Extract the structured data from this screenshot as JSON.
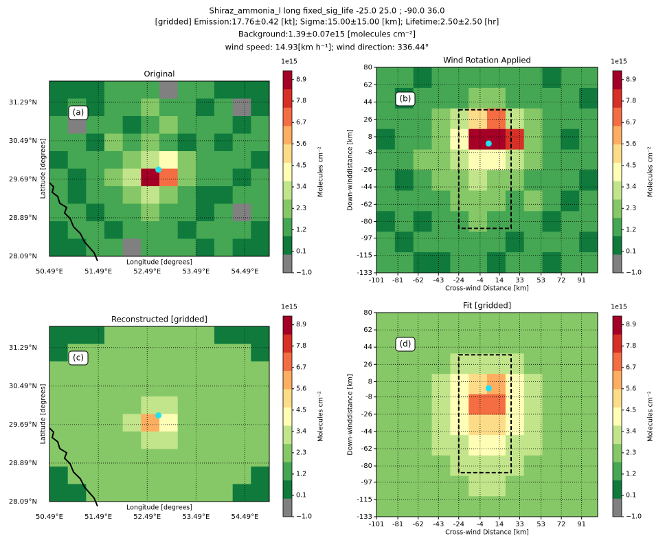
{
  "figure_title": [
    "Shiraz_ammonia_l long fixed_sig_life -25.0 25.0 ; -90.0 36.0",
    "[gridded] Emission:17.76±0.42 [kt]; Sigma:15.00±15.00 [km]; Lifetime:2.50±2.50 [hr]",
    "Background:1.39±0.07e15 [molecules cm⁻²]",
    "wind speed: 14.93[km h⁻¹]; wind direction: 336.44°"
  ],
  "chart_data": [
    {
      "type": "heatmap",
      "title": "Original",
      "panel_label": "(a)",
      "xlabel": "Longitude [degrees]",
      "ylabel": "Latitude [degrees]",
      "map": true,
      "coastline": true,
      "grid": true,
      "xlim": [
        50.49,
        54.99
      ],
      "ylim": [
        28.09,
        31.73
      ],
      "xticks": [
        {
          "value": 50.49,
          "label": "50.49°E"
        },
        {
          "value": 51.49,
          "label": "51.49°E"
        },
        {
          "value": 52.49,
          "label": "52.49°E"
        },
        {
          "value": 53.49,
          "label": "53.49°E"
        },
        {
          "value": 54.49,
          "label": "54.49°E"
        }
      ],
      "yticks": [
        {
          "value": 28.09,
          "label": "28.09°N"
        },
        {
          "value": 28.89,
          "label": "28.89°N"
        },
        {
          "value": 29.69,
          "label": "29.69°N"
        },
        {
          "value": 30.49,
          "label": "30.49°N"
        },
        {
          "value": 31.29,
          "label": "31.29°N"
        }
      ],
      "z": [
        [
          0.5,
          0.5,
          0.5,
          1.5,
          1.5,
          1.5,
          -0.5,
          1.5,
          1.5,
          0.5,
          0.5,
          0.5
        ],
        [
          0.5,
          1.5,
          0.6,
          1.5,
          1.5,
          2.5,
          1.5,
          1.5,
          0.6,
          1.5,
          -0.5,
          0.5
        ],
        [
          1.5,
          -0.5,
          1.5,
          1.5,
          0.6,
          1.5,
          2.5,
          1.5,
          1.5,
          1.5,
          0.6,
          1.5
        ],
        [
          1.5,
          1.5,
          0.6,
          2.5,
          1.5,
          2.5,
          1.5,
          0.6,
          1.5,
          0.6,
          1.5,
          1.5
        ],
        [
          0.6,
          1.5,
          1.5,
          1.5,
          2.5,
          3.5,
          4.5,
          2.5,
          1.5,
          1.5,
          1.5,
          0.6
        ],
        [
          1.5,
          0.6,
          1.5,
          2.5,
          3.5,
          9.5,
          7.0,
          2.5,
          1.5,
          1.5,
          0.6,
          1.5
        ],
        [
          1.5,
          0.6,
          1.5,
          1.5,
          2.5,
          3.5,
          2.5,
          1.5,
          0.6,
          0.6,
          1.5,
          1.5
        ],
        [
          1.5,
          1.5,
          0.6,
          1.5,
          1.5,
          2.5,
          1.5,
          1.5,
          0.6,
          1.5,
          -0.5,
          1.5
        ],
        [
          0.5,
          1.5,
          1.5,
          0.6,
          1.5,
          1.5,
          1.5,
          0.6,
          1.5,
          1.5,
          1.5,
          0.5
        ],
        [
          0.5,
          0.5,
          1.5,
          1.5,
          -0.5,
          1.5,
          1.5,
          1.5,
          0.6,
          1.5,
          0.5,
          0.5
        ]
      ],
      "marker": {
        "x": 52.72,
        "y": 29.89,
        "color": "#22e0f0"
      },
      "colorbar": {
        "offset_label": "1e15",
        "label": "Molecules cm⁻²",
        "clim": [
          -1.0,
          9.35
        ],
        "ticks": [
          8.9,
          7.8,
          6.7,
          5.6,
          4.5,
          3.4,
          2.3,
          1.2,
          0.1,
          {
            "value": -1.0,
            "label": "−1.0"
          }
        ]
      }
    },
    {
      "type": "heatmap",
      "title": "Wind Rotation Applied",
      "panel_label": "(b)",
      "xlabel": "Cross-wind Distance [km]",
      "ylabel": "Down-winddistance [km]",
      "map": false,
      "coastline": false,
      "grid": true,
      "xlim": [
        -101,
        106
      ],
      "ylim": [
        -133,
        80
      ],
      "xticks": [
        -101,
        -81,
        -62,
        -43,
        -24,
        -4,
        14,
        33,
        53,
        72,
        91
      ],
      "yticks": [
        80,
        62,
        44,
        26,
        8,
        -8,
        -26,
        -44,
        -62,
        -80,
        -97,
        -115,
        -133
      ],
      "z": [
        [
          1.5,
          1.5,
          0.6,
          1.5,
          1.5,
          1.5,
          1.5,
          1.5,
          1.5,
          0.6,
          1.5,
          1.5
        ],
        [
          1.5,
          0.6,
          1.5,
          1.5,
          1.5,
          2.5,
          2.5,
          1.5,
          1.5,
          1.5,
          1.5,
          0.6
        ],
        [
          1.5,
          1.5,
          1.5,
          2.5,
          3.5,
          5.5,
          7.0,
          3.5,
          2.5,
          1.5,
          1.5,
          1.5
        ],
        [
          0.6,
          1.5,
          1.5,
          2.5,
          4.5,
          9.5,
          9.5,
          8.0,
          2.5,
          1.5,
          0.6,
          1.5
        ],
        [
          1.5,
          1.5,
          2.5,
          2.5,
          3.5,
          4.5,
          4.5,
          3.5,
          2.5,
          1.5,
          1.5,
          1.5
        ],
        [
          1.5,
          0.6,
          1.5,
          2.5,
          2.5,
          3.5,
          2.5,
          2.5,
          1.5,
          1.5,
          1.5,
          0.6
        ],
        [
          1.5,
          1.5,
          1.5,
          1.5,
          2.5,
          2.5,
          2.5,
          1.5,
          2.5,
          1.5,
          0.6,
          1.5
        ],
        [
          0.6,
          1.5,
          0.6,
          1.5,
          1.5,
          2.5,
          1.5,
          1.5,
          1.5,
          0.6,
          1.5,
          1.5
        ],
        [
          1.5,
          0.6,
          1.5,
          1.5,
          1.5,
          1.5,
          1.5,
          0.6,
          1.5,
          1.5,
          1.5,
          0.6
        ],
        [
          1.5,
          1.5,
          0.6,
          0.6,
          1.5,
          1.5,
          0.6,
          1.5,
          1.5,
          0.6,
          1.5,
          1.5
        ]
      ],
      "marker": {
        "x": 4,
        "y": 1,
        "color": "#22e0f0"
      },
      "box": {
        "x": [
          -24,
          25
        ],
        "y": [
          -87,
          36
        ]
      },
      "colorbar": {
        "offset_label": "1e15",
        "label": "Molecules cm⁻²",
        "clim": [
          -1.0,
          9.35
        ],
        "ticks": [
          8.9,
          7.8,
          6.7,
          5.6,
          4.5,
          3.4,
          2.3,
          1.2,
          0.1,
          {
            "value": -1.0,
            "label": "−1.0"
          }
        ]
      }
    },
    {
      "type": "heatmap",
      "title": "Reconstructed [gridded]",
      "panel_label": "(c)",
      "xlabel": "Longitude [degrees]",
      "ylabel": "Latitude [degrees]",
      "map": true,
      "coastline": true,
      "grid": true,
      "xlim": [
        50.49,
        54.99
      ],
      "ylim": [
        28.09,
        31.73
      ],
      "xticks": [
        {
          "value": 50.49,
          "label": "50.49°E"
        },
        {
          "value": 51.49,
          "label": "51.49°E"
        },
        {
          "value": 52.49,
          "label": "52.49°E"
        },
        {
          "value": 53.49,
          "label": "53.49°E"
        },
        {
          "value": 54.49,
          "label": "54.49°E"
        }
      ],
      "yticks": [
        {
          "value": 28.09,
          "label": "28.09°N"
        },
        {
          "value": 28.89,
          "label": "28.89°N"
        },
        {
          "value": 29.69,
          "label": "29.69°N"
        },
        {
          "value": 30.49,
          "label": "30.49°N"
        },
        {
          "value": 31.29,
          "label": "31.29°N"
        }
      ],
      "z": [
        [
          0.5,
          0.5,
          0.5,
          2.5,
          2.5,
          2.5,
          2.5,
          2.5,
          2.5,
          0.5,
          0.5,
          0.5
        ],
        [
          0.5,
          2.5,
          2.5,
          2.5,
          2.5,
          2.5,
          2.5,
          2.5,
          2.5,
          2.5,
          2.5,
          0.5
        ],
        [
          2.5,
          2.5,
          2.5,
          2.5,
          2.5,
          2.5,
          2.5,
          2.5,
          2.5,
          2.5,
          2.5,
          2.5
        ],
        [
          2.5,
          2.5,
          2.5,
          2.5,
          2.5,
          2.5,
          2.5,
          2.5,
          2.5,
          2.5,
          2.5,
          2.5
        ],
        [
          2.5,
          2.5,
          2.5,
          2.5,
          2.5,
          3.5,
          3.5,
          2.5,
          2.5,
          2.5,
          2.5,
          2.5
        ],
        [
          2.5,
          2.5,
          2.5,
          2.5,
          3.5,
          6.5,
          4.5,
          2.5,
          2.5,
          2.5,
          2.5,
          2.5
        ],
        [
          2.5,
          2.5,
          2.5,
          2.5,
          2.5,
          3.5,
          3.5,
          2.5,
          2.5,
          2.5,
          2.5,
          2.5
        ],
        [
          2.5,
          2.5,
          2.5,
          2.5,
          2.5,
          2.5,
          2.5,
          2.5,
          2.5,
          2.5,
          2.5,
          2.5
        ],
        [
          0.5,
          2.5,
          2.5,
          2.5,
          2.5,
          2.5,
          2.5,
          2.5,
          2.5,
          2.5,
          2.5,
          0.5
        ],
        [
          0.5,
          0.5,
          2.5,
          2.5,
          2.5,
          2.5,
          2.5,
          2.5,
          2.5,
          2.5,
          0.5,
          0.5
        ]
      ],
      "marker": {
        "x": 52.72,
        "y": 29.88,
        "color": "#22e0f0"
      },
      "colorbar": {
        "offset_label": "1e15",
        "label": "Molecules cm⁻²",
        "clim": [
          -1.0,
          9.35
        ],
        "ticks": [
          8.9,
          7.8,
          6.7,
          5.6,
          4.5,
          3.4,
          2.3,
          1.2,
          0.1,
          {
            "value": -1.0,
            "label": "−1.0"
          }
        ]
      }
    },
    {
      "type": "heatmap",
      "title": "Fit [gridded]",
      "panel_label": "(d)",
      "xlabel": "Cross-wind Distance [km]",
      "ylabel": "Down-winddistance [km]",
      "map": false,
      "coastline": false,
      "grid": true,
      "xlim": [
        -101,
        106
      ],
      "ylim": [
        -133,
        80
      ],
      "xticks": [
        -101,
        -81,
        -62,
        -43,
        -24,
        -4,
        14,
        33,
        53,
        72,
        91
      ],
      "yticks": [
        80,
        62,
        44,
        26,
        8,
        -8,
        -26,
        -44,
        -62,
        -80,
        -97,
        -115,
        -133
      ],
      "z": [
        [
          2.5,
          2.5,
          2.5,
          2.5,
          2.5,
          2.5,
          2.5,
          2.5,
          2.5,
          2.5,
          2.5,
          2.5
        ],
        [
          2.5,
          2.5,
          2.5,
          2.5,
          2.5,
          2.5,
          2.5,
          2.5,
          2.5,
          2.5,
          2.5,
          2.5
        ],
        [
          2.5,
          2.5,
          2.5,
          2.5,
          3.5,
          3.5,
          3.5,
          3.5,
          2.5,
          2.5,
          2.5,
          2.5
        ],
        [
          2.5,
          2.5,
          2.5,
          3.5,
          4.5,
          5.5,
          6.5,
          4.5,
          3.5,
          2.5,
          2.5,
          2.5
        ],
        [
          2.5,
          2.5,
          2.5,
          3.5,
          4.5,
          7.0,
          7.0,
          4.5,
          3.5,
          2.5,
          2.5,
          2.5
        ],
        [
          2.5,
          2.5,
          2.5,
          3.5,
          4.5,
          5.5,
          5.5,
          4.5,
          3.5,
          2.5,
          2.5,
          2.5
        ],
        [
          2.5,
          2.5,
          2.5,
          3.5,
          3.5,
          4.5,
          4.5,
          3.5,
          3.5,
          2.5,
          2.5,
          2.5
        ],
        [
          2.5,
          2.5,
          2.5,
          2.5,
          3.5,
          3.5,
          3.5,
          3.5,
          2.5,
          2.5,
          2.5,
          2.5
        ],
        [
          2.5,
          2.5,
          2.5,
          2.5,
          2.5,
          3.5,
          3.5,
          2.5,
          2.5,
          2.5,
          2.5,
          2.5
        ],
        [
          2.5,
          2.5,
          2.5,
          2.5,
          2.5,
          2.5,
          2.5,
          2.5,
          2.5,
          2.5,
          2.5,
          2.5
        ]
      ],
      "marker": {
        "x": 4,
        "y": 1,
        "color": "#22e0f0"
      },
      "box": {
        "x": [
          -24,
          25
        ],
        "y": [
          -87,
          36
        ]
      },
      "colorbar": {
        "offset_label": "1e15",
        "label": "Molecules cm⁻²",
        "clim": [
          -1.0,
          9.35
        ],
        "ticks": [
          8.9,
          7.8,
          6.7,
          5.6,
          4.5,
          3.4,
          2.3,
          1.2,
          0.1,
          {
            "value": -1.0,
            "label": "−1.0"
          }
        ]
      }
    }
  ],
  "colormap": [
    "#808080",
    "#0f7a3c",
    "#45a653",
    "#86c867",
    "#c2e58b",
    "#fefeb6",
    "#fddc89",
    "#fdae61",
    "#f46d43",
    "#d73027",
    "#a50026"
  ]
}
